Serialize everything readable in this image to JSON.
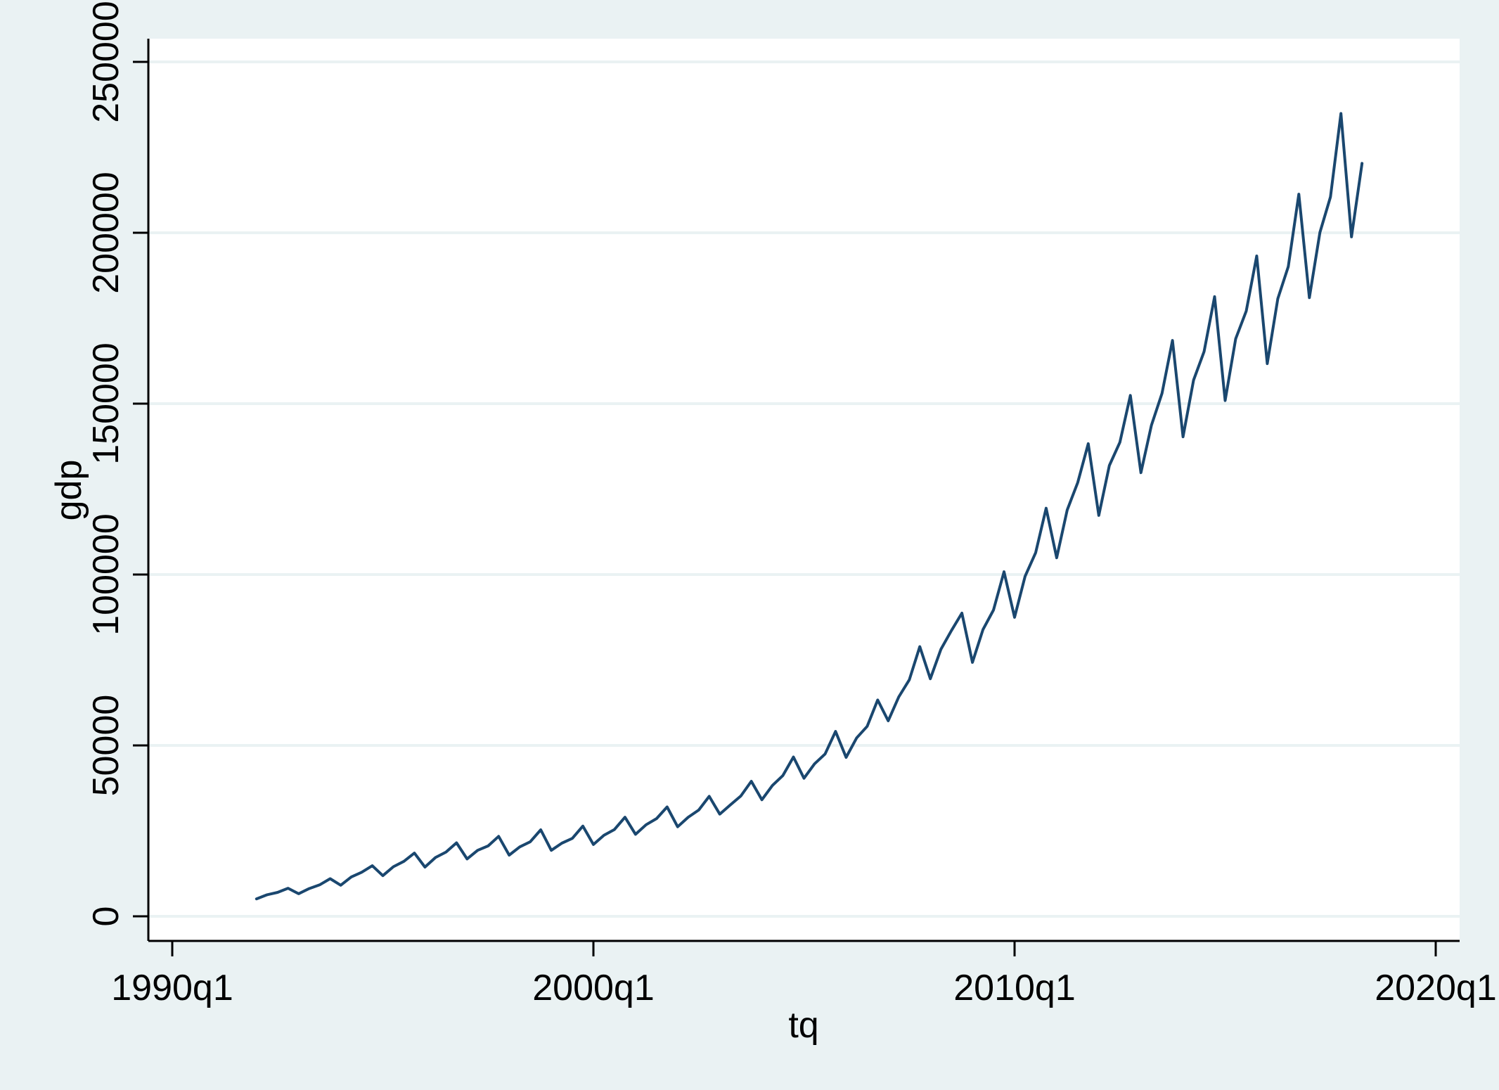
{
  "chart_data": {
    "type": "line",
    "title": "",
    "xlabel": "tq",
    "ylabel": "gdp",
    "xlim": [
      "1990q1",
      "2020q1"
    ],
    "ylim": [
      0,
      250000
    ],
    "grid": "horizontal",
    "x_ticks": [
      "1990q1",
      "2000q1",
      "2010q1",
      "2020q1"
    ],
    "y_ticks": [
      0,
      50000,
      100000,
      150000,
      200000,
      250000
    ],
    "y_tick_labels": [
      "0",
      "50000",
      "100000",
      "150000",
      "200000",
      "250000"
    ],
    "colors": {
      "line": "#1a476f",
      "grid": "#eaf2f3",
      "plot_bg": "#ffffff",
      "page_bg": "#eaf2f3"
    },
    "series": [
      {
        "x": [
          "1992q1",
          "1992q2",
          "1992q3",
          "1992q4",
          "1993q1",
          "1993q2",
          "1993q3",
          "1993q4",
          "1994q1",
          "1994q2",
          "1994q3",
          "1994q4",
          "1995q1",
          "1995q2",
          "1995q3",
          "1995q4",
          "1996q1",
          "1996q2",
          "1996q3",
          "1996q4",
          "1997q1",
          "1997q2",
          "1997q3",
          "1997q4",
          "1998q1",
          "1998q2",
          "1998q3",
          "1998q4",
          "1999q1",
          "1999q2",
          "1999q3",
          "1999q4",
          "2000q1",
          "2000q2",
          "2000q3",
          "2000q4",
          "2001q1",
          "2001q2",
          "2001q3",
          "2001q4",
          "2002q1",
          "2002q2",
          "2002q3",
          "2002q4",
          "2003q1",
          "2003q2",
          "2003q3",
          "2003q4",
          "2004q1",
          "2004q2",
          "2004q3",
          "2004q4",
          "2005q1",
          "2005q2",
          "2005q3",
          "2005q4",
          "2006q1",
          "2006q2",
          "2006q3",
          "2006q4",
          "2007q1",
          "2007q2",
          "2007q3",
          "2007q4",
          "2008q1",
          "2008q2",
          "2008q3",
          "2008q4",
          "2009q1",
          "2009q2",
          "2009q3",
          "2009q4",
          "2010q1",
          "2010q2",
          "2010q3",
          "2010q4",
          "2011q1",
          "2011q2",
          "2011q3",
          "2011q4",
          "2012q1",
          "2012q2",
          "2012q3",
          "2012q4",
          "2013q1",
          "2013q2",
          "2013q3",
          "2013q4",
          "2014q1",
          "2014q2",
          "2014q3",
          "2014q4",
          "2015q1",
          "2015q2",
          "2015q3",
          "2015q4",
          "2016q1",
          "2016q2",
          "2016q3",
          "2016q4",
          "2017q1",
          "2017q2",
          "2017q3",
          "2017q4",
          "2018q1",
          "2018q2"
        ],
        "values": [
          5100,
          6300,
          7000,
          8200,
          6600,
          8100,
          9200,
          11000,
          9100,
          11500,
          12900,
          14800,
          11900,
          14500,
          16100,
          18500,
          14400,
          17200,
          18800,
          21500,
          16800,
          19300,
          20600,
          23400,
          17900,
          20300,
          21800,
          25300,
          19300,
          21400,
          22800,
          26400,
          21000,
          23700,
          25400,
          29000,
          24000,
          26800,
          28600,
          32000,
          26200,
          29000,
          31100,
          35100,
          29900,
          32600,
          35200,
          39500,
          34100,
          38300,
          41200,
          46600,
          40400,
          44600,
          47500,
          54100,
          46500,
          52200,
          55600,
          63300,
          57200,
          64200,
          69200,
          78900,
          69500,
          78100,
          83600,
          88700,
          74300,
          83900,
          89600,
          100800,
          87500,
          99500,
          106400,
          119400,
          104900,
          118900,
          126900,
          138300,
          117300,
          131900,
          138700,
          152400,
          129800,
          143700,
          153000,
          168500,
          140300,
          156900,
          165200,
          181300,
          150900,
          169000,
          177100,
          193200,
          161700,
          180700,
          190100,
          211300,
          181000,
          200100,
          210500,
          234900,
          198800,
          220300
        ]
      }
    ]
  }
}
